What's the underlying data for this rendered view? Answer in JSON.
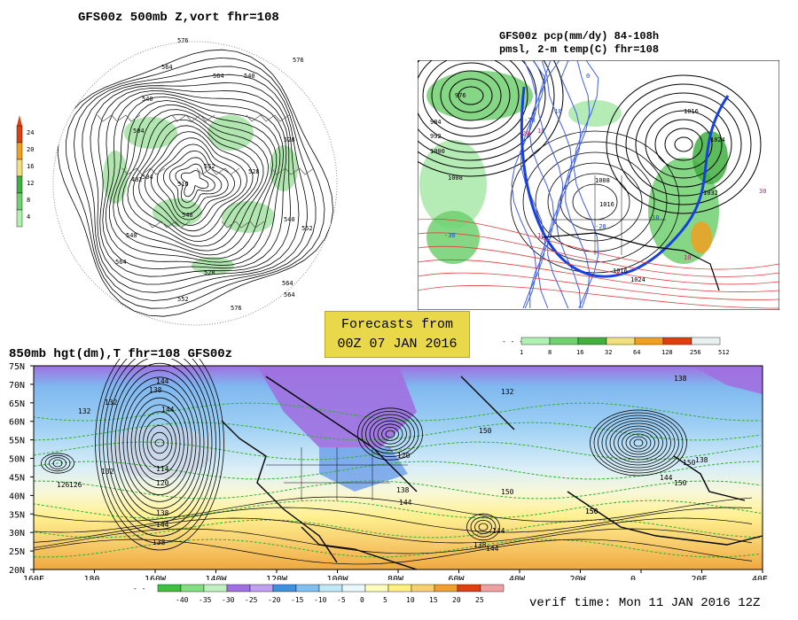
{
  "polar_panel": {
    "title": "GFS00z  500mb Z,vort   fhr=108",
    "contour_labels": [
      "576",
      "564",
      "564",
      "540",
      "540",
      "528",
      "552",
      "516",
      "504",
      "528",
      "492",
      "540",
      "540",
      "564",
      "552",
      "528",
      "564",
      "576",
      "552",
      "564",
      "576",
      "504",
      "540"
    ],
    "colorbar": {
      "labels": [
        "24",
        "20",
        "16",
        "12",
        "8",
        "4"
      ],
      "colors": [
        "#e04010",
        "#f0a020",
        "#f0e080",
        "#40b040",
        "#70d070",
        "#b0f0b0"
      ]
    }
  },
  "precip_panel": {
    "title_line1": "GFS00z pcp(mm/dy) 84-108h",
    "title_line2": "pmsl, 2-m temp(C)  fhr=108",
    "contour_labels": [
      "976",
      "984",
      "992",
      "1000",
      "1008",
      "1016",
      "1024",
      "1032",
      "1008",
      "1016",
      "1016",
      "1024",
      "-20",
      "-10",
      "0",
      "10",
      "-30",
      "-20",
      "10",
      "10",
      "-10",
      "30",
      "20"
    ],
    "colorbar": {
      "labels": [
        "1",
        "8",
        "16",
        "32",
        "64",
        "128",
        "256",
        "512"
      ],
      "colors": [
        "#b0f0b0",
        "#70d070",
        "#40b040",
        "#f0e080",
        "#f0a020",
        "#e04010",
        "#e8f0f0"
      ]
    }
  },
  "forecast_box": {
    "line1": "Forecasts from",
    "line2": "00Z 07 JAN 2016"
  },
  "bottom_panel": {
    "title": "850mb hgt(dm),T  fhr=108 GFS00z",
    "lat_labels": [
      "75N",
      "70N",
      "65N",
      "60N",
      "55N",
      "50N",
      "45N",
      "40N",
      "35N",
      "30N",
      "25N",
      "20N"
    ],
    "lon_labels": [
      "160E",
      "180",
      "160W",
      "140W",
      "120W",
      "100W",
      "80W",
      "60W",
      "40W",
      "20W",
      "0",
      "20E",
      "40E"
    ],
    "contour_labels": [
      "144",
      "138",
      "132",
      "126",
      "114",
      "120",
      "138",
      "144",
      "132",
      "150",
      "150",
      "144",
      "138",
      "126",
      "132",
      "138",
      "144",
      "150",
      "150",
      "120",
      "138",
      "144",
      "138",
      "132",
      "150",
      "144",
      "156",
      "144",
      "138"
    ],
    "colorbar": {
      "labels": [
        "-40",
        "-35",
        "-30",
        "-25",
        "-20",
        "-15",
        "-10",
        "-5",
        "0",
        "5",
        "10",
        "15",
        "20",
        "25"
      ],
      "colors": [
        "#40c040",
        "#80e080",
        "#c0f0c0",
        "#a070e0",
        "#c0a0f0",
        "#4090e0",
        "#80c0f0",
        "#c0e8f8",
        "#e8f8fc",
        "#fffcc0",
        "#fff080",
        "#f8d070",
        "#f0a030",
        "#e04010",
        "#f0a0a0"
      ]
    }
  },
  "verif_time": "verif time: Mon 11 JAN 2016 12Z"
}
